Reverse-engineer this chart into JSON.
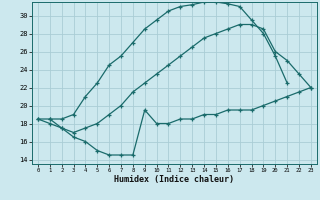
{
  "xlabel": "Humidex (Indice chaleur)",
  "bg_color": "#cce8ee",
  "grid_color": "#aacdd5",
  "line_color": "#1a6b6b",
  "xlim": [
    -0.5,
    23.5
  ],
  "ylim": [
    13.5,
    31.5
  ],
  "xticks": [
    0,
    1,
    2,
    3,
    4,
    5,
    6,
    7,
    8,
    9,
    10,
    11,
    12,
    13,
    14,
    15,
    16,
    17,
    18,
    19,
    20,
    21,
    22,
    23
  ],
  "yticks": [
    14,
    16,
    18,
    20,
    22,
    24,
    26,
    28,
    30
  ],
  "curve1_x": [
    0,
    1,
    2,
    3,
    4,
    5,
    6,
    7,
    8,
    9,
    10,
    11,
    12,
    13,
    14,
    15,
    16,
    17,
    18,
    19,
    20,
    21
  ],
  "curve1_y": [
    18.5,
    18.5,
    18.5,
    19.0,
    21.0,
    22.5,
    24.5,
    25.5,
    27.0,
    28.5,
    29.5,
    30.5,
    31.0,
    31.2,
    31.5,
    31.5,
    31.3,
    31.0,
    29.5,
    28.0,
    25.5,
    22.5
  ],
  "curve2_x": [
    0,
    1,
    2,
    3,
    4,
    5,
    6,
    7,
    8,
    9,
    10,
    11,
    12,
    13,
    14,
    15,
    16,
    17,
    18,
    19,
    20,
    21,
    22,
    23
  ],
  "curve2_y": [
    18.5,
    18.0,
    17.5,
    17.0,
    17.5,
    18.0,
    19.0,
    20.0,
    21.5,
    22.5,
    23.5,
    24.5,
    25.5,
    26.5,
    27.5,
    28.0,
    28.5,
    29.0,
    29.0,
    28.5,
    26.0,
    25.0,
    23.5,
    22.0
  ],
  "curve3_x": [
    1,
    2,
    3,
    4,
    5,
    6,
    7,
    8,
    9,
    10,
    11,
    12,
    13,
    14,
    15,
    16,
    17,
    18,
    19,
    20,
    21,
    22,
    23
  ],
  "curve3_y": [
    18.5,
    17.5,
    16.5,
    16.0,
    15.0,
    14.5,
    14.5,
    14.5,
    19.5,
    18.0,
    18.0,
    18.5,
    18.5,
    19.0,
    19.0,
    19.5,
    19.5,
    19.5,
    20.0,
    20.5,
    21.0,
    21.5,
    22.0
  ]
}
